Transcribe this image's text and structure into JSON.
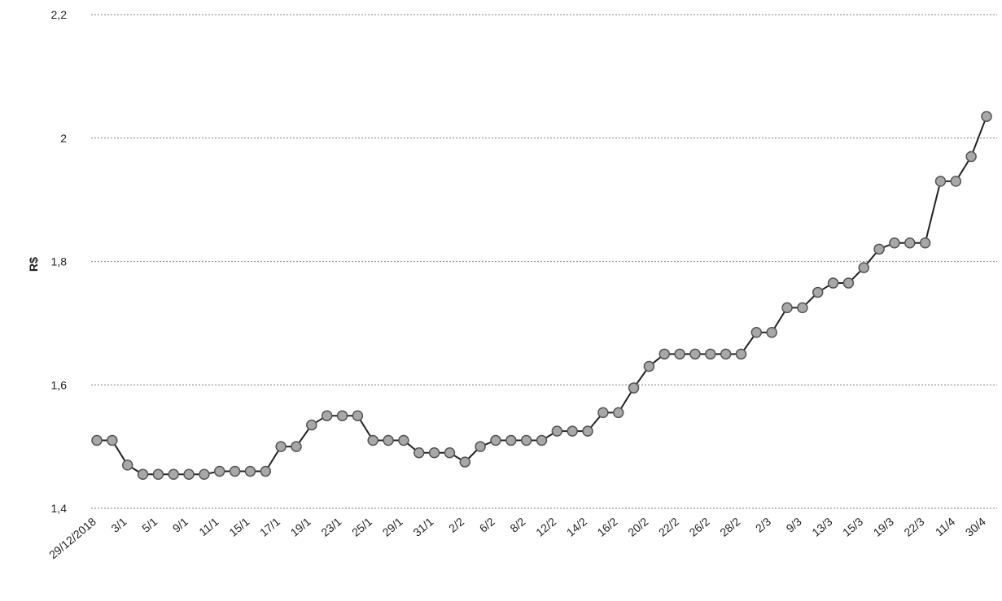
{
  "chart_data": {
    "type": "line",
    "y_label": "R$",
    "categories": [
      "29/12/2018",
      null,
      "3/1",
      null,
      "5/1",
      null,
      "9/1",
      null,
      "11/1",
      null,
      "15/1",
      null,
      "17/1",
      null,
      "19/1",
      null,
      "23/1",
      null,
      "25/1",
      null,
      "29/1",
      null,
      "31/1",
      null,
      "2/2",
      null,
      "6/2",
      null,
      "8/2",
      null,
      "12/2",
      null,
      "14/2",
      null,
      "16/2",
      null,
      "20/2",
      null,
      "22/2",
      null,
      "26/2",
      null,
      "28/2",
      null,
      "2/3",
      null,
      "9/3",
      null,
      "13/3",
      null,
      "15/3",
      null,
      "19/3",
      null,
      "22/3",
      null,
      "11/4",
      null,
      "30/4"
    ],
    "values": [
      1.51,
      1.51,
      1.47,
      1.455,
      1.455,
      1.455,
      1.455,
      1.455,
      1.46,
      1.46,
      1.46,
      1.46,
      1.5,
      1.5,
      1.535,
      1.55,
      1.55,
      1.55,
      1.51,
      1.51,
      1.51,
      1.49,
      1.49,
      1.49,
      1.475,
      1.5,
      1.51,
      1.51,
      1.51,
      1.51,
      1.525,
      1.525,
      1.525,
      1.555,
      1.555,
      1.595,
      1.63,
      1.65,
      1.65,
      1.65,
      1.65,
      1.65,
      1.65,
      1.685,
      1.685,
      1.725,
      1.725,
      1.75,
      1.765,
      1.765,
      1.79,
      1.82,
      1.83,
      1.83,
      1.83,
      1.93,
      1.93,
      1.97,
      2.035
    ],
    "color": "#222222",
    "marker_color": "#a8a8a8",
    "ylim": [
      1.4,
      2.2
    ],
    "yticks": [
      {
        "value": 1.4,
        "label": "1,4"
      },
      {
        "value": 1.6,
        "label": "1,6"
      },
      {
        "value": 1.8,
        "label": "1,8"
      },
      2,
      {
        "value": 2.2,
        "label": "2,2"
      }
    ],
    "grid": true
  }
}
